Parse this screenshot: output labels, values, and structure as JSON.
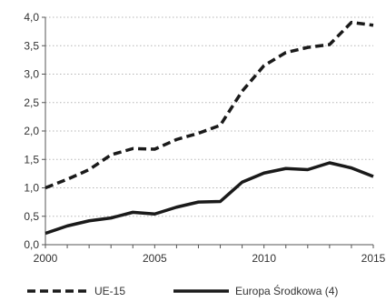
{
  "chart_data": {
    "type": "line",
    "title": "",
    "xlabel": "",
    "ylabel": "",
    "x": [
      2000,
      2001,
      2002,
      2003,
      2004,
      2005,
      2006,
      2007,
      2008,
      2009,
      2010,
      2011,
      2012,
      2013,
      2014,
      2015
    ],
    "xlim": [
      2000,
      2015
    ],
    "ylim": [
      0,
      4
    ],
    "x_ticks": [
      "2000",
      "2005",
      "2010",
      "2015"
    ],
    "y_ticks": [
      "0,0",
      "0,5",
      "1,0",
      "1,5",
      "2,0",
      "2,5",
      "3,0",
      "3,5",
      "4,0"
    ],
    "grid": "horizontal",
    "legend_position": "bottom",
    "series": [
      {
        "name": "UE-15",
        "style": "dashed",
        "color": "#1a1a1a",
        "values": [
          1.0,
          1.15,
          1.32,
          1.58,
          1.69,
          1.68,
          1.85,
          1.96,
          2.1,
          2.7,
          3.15,
          3.38,
          3.47,
          3.52,
          3.91,
          3.86
        ]
      },
      {
        "name": "Europa Środkowa (4)",
        "style": "solid",
        "color": "#1a1a1a",
        "values": [
          0.2,
          0.33,
          0.42,
          0.47,
          0.57,
          0.54,
          0.66,
          0.75,
          0.76,
          1.1,
          1.26,
          1.34,
          1.32,
          1.44,
          1.35,
          1.2
        ]
      }
    ]
  }
}
